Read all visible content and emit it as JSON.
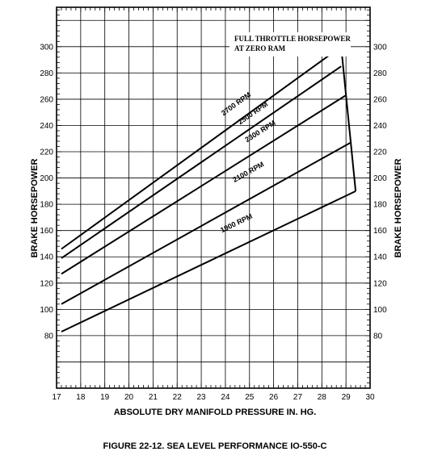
{
  "chart_data": {
    "type": "line",
    "title": "",
    "annotation": [
      "FULL THROTTLE HORSEPOWER",
      "AT ZERO RAM"
    ],
    "xlabel": "ABSOLUTE DRY MANIFOLD PRESSURE IN. HG.",
    "ylabel_left": "BRAKE HORSEPOWER",
    "ylabel_right": "BRAKE HORSEPOWER",
    "caption": "FIGURE 22-12. SEA LEVEL PERFORMANCE  IO-550-C",
    "xlim": [
      17,
      30
    ],
    "ylim": [
      40,
      330
    ],
    "x_ticks": [
      17,
      18,
      19,
      20,
      21,
      22,
      23,
      24,
      25,
      26,
      27,
      28,
      29,
      30
    ],
    "x_tick_labels": [
      "17",
      "18",
      "19",
      "20",
      "21",
      "22",
      "23",
      "24",
      "25",
      "26",
      "27",
      "28",
      "29",
      "30"
    ],
    "y_ticks": [
      80,
      100,
      120,
      140,
      160,
      180,
      200,
      220,
      240,
      260,
      280,
      300
    ],
    "y_tick_labels": [
      "80",
      "100",
      "120",
      "140",
      "160",
      "180",
      "200",
      "220",
      "240",
      "260",
      "280",
      "300"
    ],
    "grid": true,
    "series": [
      {
        "name": "2700 RPM",
        "label_at": [
          24.5,
          255
        ],
        "points": [
          [
            17.2,
            146
          ],
          [
            28.8,
            300
          ]
        ]
      },
      {
        "name": "2500 RPM",
        "label_at": [
          25.2,
          248
        ],
        "points": [
          [
            17.2,
            139
          ],
          [
            28.8,
            285
          ]
        ]
      },
      {
        "name": "2300 RPM",
        "label_at": [
          25.5,
          234
        ],
        "points": [
          [
            17.2,
            127
          ],
          [
            29.0,
            263
          ]
        ]
      },
      {
        "name": "2100 RPM",
        "label_at": [
          25.0,
          203
        ],
        "points": [
          [
            17.2,
            104
          ],
          [
            29.2,
            227
          ]
        ]
      },
      {
        "name": "1900 RPM",
        "label_at": [
          24.5,
          164
        ],
        "points": [
          [
            17.2,
            83
          ],
          [
            29.4,
            190
          ]
        ]
      },
      {
        "name": "",
        "points": [
          [
            28.8,
            300
          ],
          [
            29.0,
            263
          ],
          [
            29.2,
            227
          ],
          [
            29.4,
            190
          ]
        ]
      }
    ]
  }
}
